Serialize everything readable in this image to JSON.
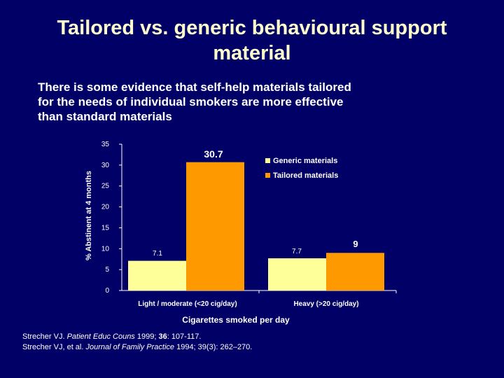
{
  "slide": {
    "title_line1": "Tailored vs. generic behavioural support",
    "title_line2": "material",
    "subtitle_line1": "There is some evidence that self-help materials tailored",
    "subtitle_line2": "for the needs of individual smokers are more effective",
    "subtitle_line3": "than standard materials"
  },
  "chart_data": {
    "type": "bar",
    "title": "",
    "xlabel": "Cigarettes smoked per day",
    "ylabel": "% Abstinent at 4 months",
    "ylim": [
      0,
      35
    ],
    "yticks": [
      0,
      5,
      10,
      15,
      20,
      25,
      30,
      35
    ],
    "categories": [
      "Light / moderate (<20 cig/day)",
      "Heavy (>20 cig/day)"
    ],
    "series": [
      {
        "name": "Generic materials",
        "values": [
          7.1,
          7.7
        ],
        "labels": [
          "7.1",
          "7.7"
        ],
        "color": "#ffff99"
      },
      {
        "name": "Tailored materials",
        "values": [
          30.7,
          9
        ],
        "labels": [
          "30.7",
          "9"
        ],
        "color": "#ff9900"
      }
    ],
    "legend_position": "top-right",
    "grid": false
  },
  "references": [
    {
      "pre": "Strecher VJ. ",
      "journal": "Patient Educ Couns",
      "year": " 1999; ",
      "vol": "36",
      "rest": ": 107-117."
    },
    {
      "pre": "Strecher VJ, et al. ",
      "journal": "Journal of Family Practice",
      "year": " 1994; ",
      "vol": "39(3)",
      "rest": ": 262–270."
    }
  ]
}
